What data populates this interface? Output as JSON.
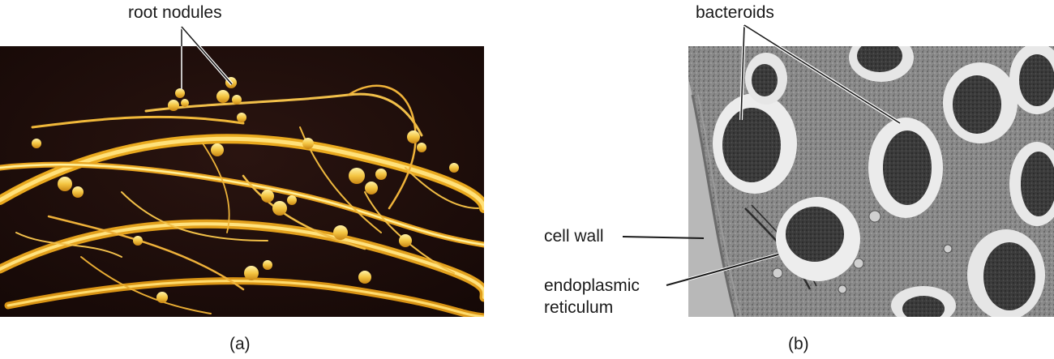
{
  "panel_a": {
    "callout": "root nodules",
    "caption": "(a)"
  },
  "panel_b": {
    "callout_top": "bacteroids",
    "callout_cell_wall": "cell wall",
    "callout_er_line1": "endoplasmic",
    "callout_er_line2": "reticulum",
    "caption": "(b)"
  }
}
